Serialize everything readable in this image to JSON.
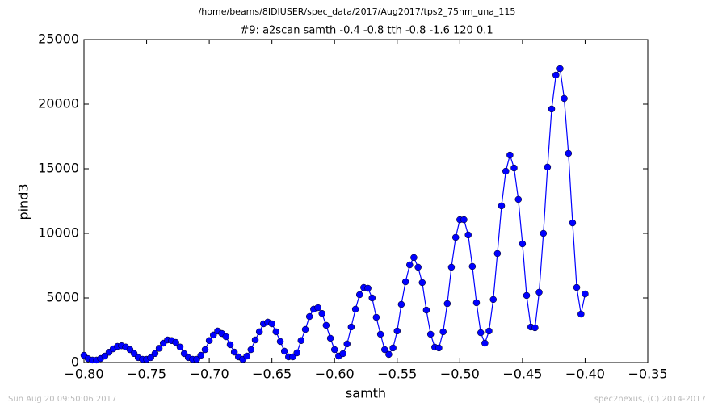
{
  "chart_data": {
    "type": "line",
    "header": "/home/beams/8IDIUSER/spec_data/2017/Aug2017/tps2_75nm_una_115",
    "title": "#9: a2scan  samth -0.4 -0.8  tth -0.8 -1.6  120 0.1",
    "x_label": "samth",
    "y_label": "pind3",
    "footer_left": "Sun Aug 20 09:50:06 2017",
    "footer_right": "spec2nexus, (C) 2014-2017",
    "xlim": [
      -0.8,
      -0.35
    ],
    "ylim": [
      0,
      25000
    ],
    "xticks": [
      {
        "value": -0.8,
        "label": "−0.80"
      },
      {
        "value": -0.75,
        "label": "−0.75"
      },
      {
        "value": -0.7,
        "label": "−0.70"
      },
      {
        "value": -0.65,
        "label": "−0.65"
      },
      {
        "value": -0.6,
        "label": "−0.60"
      },
      {
        "value": -0.55,
        "label": "−0.55"
      },
      {
        "value": -0.5,
        "label": "−0.50"
      },
      {
        "value": -0.45,
        "label": "−0.45"
      },
      {
        "value": -0.4,
        "label": "−0.40"
      },
      {
        "value": -0.35,
        "label": "−0.35"
      }
    ],
    "yticks": [
      0,
      5000,
      10000,
      15000,
      20000,
      25000
    ],
    "x": [
      -0.8,
      -0.7967,
      -0.7933,
      -0.79,
      -0.7867,
      -0.7833,
      -0.78,
      -0.7767,
      -0.7733,
      -0.77,
      -0.7667,
      -0.7633,
      -0.76,
      -0.7567,
      -0.7533,
      -0.75,
      -0.7467,
      -0.7433,
      -0.74,
      -0.7367,
      -0.7333,
      -0.73,
      -0.7267,
      -0.7233,
      -0.72,
      -0.7167,
      -0.7133,
      -0.71,
      -0.7067,
      -0.7033,
      -0.7,
      -0.6967,
      -0.6933,
      -0.69,
      -0.6867,
      -0.6833,
      -0.68,
      -0.6767,
      -0.6733,
      -0.67,
      -0.6667,
      -0.6633,
      -0.66,
      -0.6567,
      -0.6533,
      -0.65,
      -0.6467,
      -0.6433,
      -0.64,
      -0.6367,
      -0.6333,
      -0.63,
      -0.6267,
      -0.6233,
      -0.62,
      -0.6167,
      -0.6133,
      -0.61,
      -0.6067,
      -0.6033,
      -0.6,
      -0.5967,
      -0.5933,
      -0.59,
      -0.5867,
      -0.5833,
      -0.58,
      -0.5767,
      -0.5733,
      -0.57,
      -0.5667,
      -0.5633,
      -0.56,
      -0.5567,
      -0.5533,
      -0.55,
      -0.5467,
      -0.5433,
      -0.54,
      -0.5367,
      -0.5333,
      -0.53,
      -0.5267,
      -0.5233,
      -0.52,
      -0.5167,
      -0.5133,
      -0.51,
      -0.5067,
      -0.5033,
      -0.5,
      -0.4967,
      -0.4933,
      -0.49,
      -0.4867,
      -0.4833,
      -0.48,
      -0.4767,
      -0.4733,
      -0.47,
      -0.4667,
      -0.4633,
      -0.46,
      -0.4567,
      -0.4533,
      -0.45,
      -0.4467,
      -0.4433,
      -0.44,
      -0.4367,
      -0.4333,
      -0.43,
      -0.4267,
      -0.4233,
      -0.42,
      -0.4167,
      -0.4133,
      -0.41,
      -0.4067,
      -0.4033,
      -0.4
    ],
    "series": [
      {
        "name": "pind3",
        "color": "#0000ff",
        "values": [
          560,
          300,
          190,
          190,
          310,
          500,
          800,
          1060,
          1250,
          1300,
          1200,
          1000,
          700,
          380,
          250,
          250,
          380,
          700,
          1100,
          1500,
          1750,
          1700,
          1560,
          1200,
          690,
          380,
          250,
          250,
          560,
          1000,
          1700,
          2130,
          2440,
          2250,
          2000,
          1380,
          810,
          440,
          250,
          500,
          1000,
          1750,
          2380,
          3000,
          3130,
          3000,
          2380,
          1630,
          880,
          440,
          440,
          750,
          1700,
          2560,
          3560,
          4130,
          4250,
          3800,
          2880,
          1880,
          1000,
          500,
          690,
          1440,
          2750,
          4130,
          5250,
          5810,
          5750,
          5000,
          3500,
          2190,
          1000,
          630,
          1130,
          2440,
          4500,
          6250,
          7560,
          8130,
          7380,
          6190,
          4060,
          2190,
          1190,
          1130,
          2380,
          4560,
          7380,
          9690,
          11060,
          11060,
          9880,
          7440,
          4630,
          2310,
          1500,
          2440,
          4880,
          8440,
          12130,
          14810,
          16060,
          15060,
          12630,
          9190,
          5190,
          2750,
          2690,
          5440,
          10000,
          15130,
          19630,
          22250,
          22750,
          20440,
          16190,
          10810,
          5810,
          3750,
          5310
        ]
      }
    ]
  }
}
